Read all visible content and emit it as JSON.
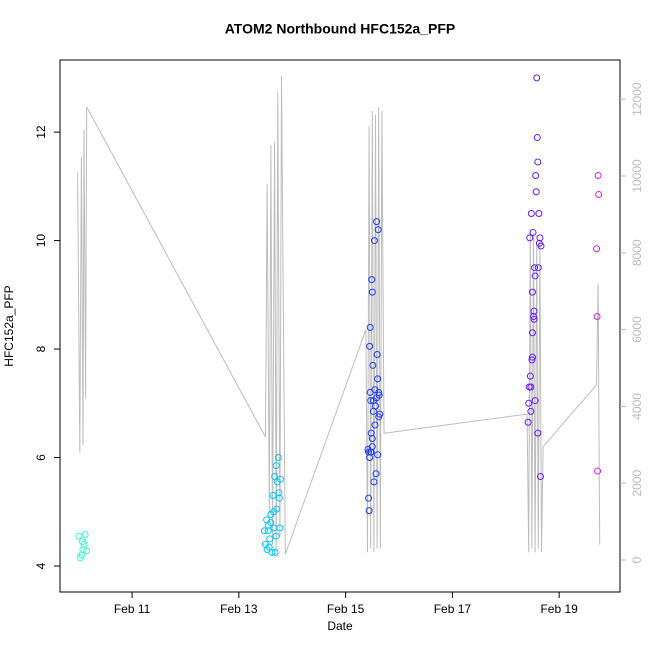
{
  "chart_data": {
    "type": "scatter",
    "title": "ATOM2 Northbound HFC152a_PFP",
    "x_label": "Date",
    "y_label": "HFC152a_PFP",
    "xlim": [
      9.65,
      20.14
    ],
    "xticks": [
      {
        "value": 11,
        "label": "Feb 11"
      },
      {
        "value": 13,
        "label": "Feb 13"
      },
      {
        "value": 15,
        "label": "Feb 15"
      },
      {
        "value": 17,
        "label": "Feb 17"
      },
      {
        "value": 19,
        "label": "Feb 19"
      }
    ],
    "ylim": [
      3.52,
      13.33
    ],
    "yticks": [
      4,
      6,
      8,
      10,
      12
    ],
    "y2lim": [
      -833,
      13020
    ],
    "y2ticks": [
      0,
      2000,
      4000,
      6000,
      8000,
      10000,
      12000
    ],
    "series": [
      {
        "color": "#bdbdbd",
        "axis": "y2",
        "style": "line",
        "x": [
          9.98,
          10.02,
          10.05,
          10.08,
          10.1,
          10.13,
          10.15,
          13.5,
          13.53,
          13.57,
          13.6,
          13.63,
          13.67,
          13.7,
          13.73,
          13.77,
          13.8,
          13.87,
          15.38,
          15.41,
          15.44,
          15.47,
          15.5,
          15.53,
          15.56,
          15.59,
          15.62,
          15.65,
          15.68,
          15.72,
          18.4,
          18.43,
          18.46,
          18.49,
          18.52,
          18.55,
          18.58,
          18.61,
          18.64,
          18.67,
          18.7,
          19.7,
          19.73,
          19.76
        ],
        "values": [
          10100,
          2800,
          10500,
          3000,
          11200,
          4200,
          11800,
          3200,
          9800,
          1200,
          10800,
          400,
          10900,
          200,
          12200,
          600,
          12600,
          150,
          6000,
          200,
          11300,
          300,
          11700,
          200,
          11600,
          300,
          11800,
          300,
          11700,
          3300,
          3800,
          200,
          8600,
          300,
          8500,
          200,
          8200,
          300,
          8300,
          200,
          2950,
          4560,
          7200,
          400
        ]
      },
      {
        "color": "#33ffcc",
        "style": "points",
        "x": [
          10.0,
          10.05,
          10.08,
          10.1,
          10.12,
          10.15,
          10.07,
          10.03
        ],
        "values": [
          4.55,
          4.2,
          4.3,
          4.4,
          4.58,
          4.28,
          4.45,
          4.15
        ]
      },
      {
        "color": "#00c8ff",
        "style": "points",
        "x": [
          13.48,
          13.5,
          13.52,
          13.53,
          13.55,
          13.57,
          13.58,
          13.6,
          13.62,
          13.64,
          13.65,
          13.66,
          13.67,
          13.68,
          13.7,
          13.71,
          13.72,
          13.74,
          13.75,
          13.76,
          13.77,
          13.78,
          13.7,
          13.6,
          13.55
        ],
        "values": [
          4.65,
          4.4,
          4.85,
          4.3,
          4.75,
          4.35,
          4.5,
          4.8,
          4.25,
          5.3,
          5.0,
          4.7,
          5.65,
          4.25,
          5.85,
          5.05,
          5.55,
          6.0,
          5.35,
          5.25,
          4.7,
          5.6,
          4.55,
          4.95,
          4.65
        ]
      },
      {
        "color": "#1a3cff",
        "style": "points",
        "x": [
          15.42,
          15.43,
          15.44,
          15.45,
          15.46,
          15.47,
          15.47,
          15.48,
          15.49,
          15.5,
          15.5,
          15.51,
          15.52,
          15.53,
          15.54,
          15.55,
          15.56,
          15.57,
          15.58,
          15.59,
          15.6,
          15.61,
          15.62,
          15.63,
          15.64,
          15.55,
          15.45,
          15.48,
          15.52,
          15.58,
          15.6,
          15.62,
          15.5,
          15.46,
          15.43
        ],
        "values": [
          6.15,
          5.25,
          5.02,
          8.05,
          8.4,
          7.05,
          6.1,
          6.45,
          9.28,
          9.05,
          6.2,
          7.7,
          6.85,
          5.55,
          10.0,
          7.25,
          6.95,
          5.7,
          10.35,
          7.9,
          7.45,
          10.2,
          6.75,
          7.15,
          6.8,
          6.6,
          6.0,
          6.1,
          7.05,
          7.1,
          6.05,
          7.2,
          6.35,
          7.2,
          6.1
        ]
      },
      {
        "color": "#6a1aff",
        "style": "points",
        "x": [
          18.42,
          18.43,
          18.44,
          18.45,
          18.46,
          18.47,
          18.48,
          18.49,
          18.5,
          18.5,
          18.51,
          18.52,
          18.53,
          18.54,
          18.55,
          18.56,
          18.57,
          18.58,
          18.59,
          18.6,
          18.6,
          18.61,
          18.62,
          18.63,
          18.64,
          18.65,
          18.66,
          18.5,
          18.47,
          18.53,
          18.55
        ],
        "values": [
          6.65,
          7.0,
          7.3,
          10.05,
          7.5,
          6.85,
          10.5,
          7.8,
          9.05,
          8.3,
          10.15,
          8.6,
          8.7,
          9.5,
          9.35,
          11.2,
          10.9,
          13.0,
          11.9,
          11.45,
          6.45,
          9.5,
          10.5,
          9.95,
          10.05,
          5.65,
          9.9,
          7.85,
          7.3,
          8.55,
          7.05
        ]
      },
      {
        "color": "#dd22ee",
        "style": "points",
        "x": [
          19.73,
          19.74,
          19.7,
          19.71,
          19.72
        ],
        "values": [
          11.2,
          10.85,
          9.85,
          8.6,
          5.75
        ]
      }
    ]
  }
}
